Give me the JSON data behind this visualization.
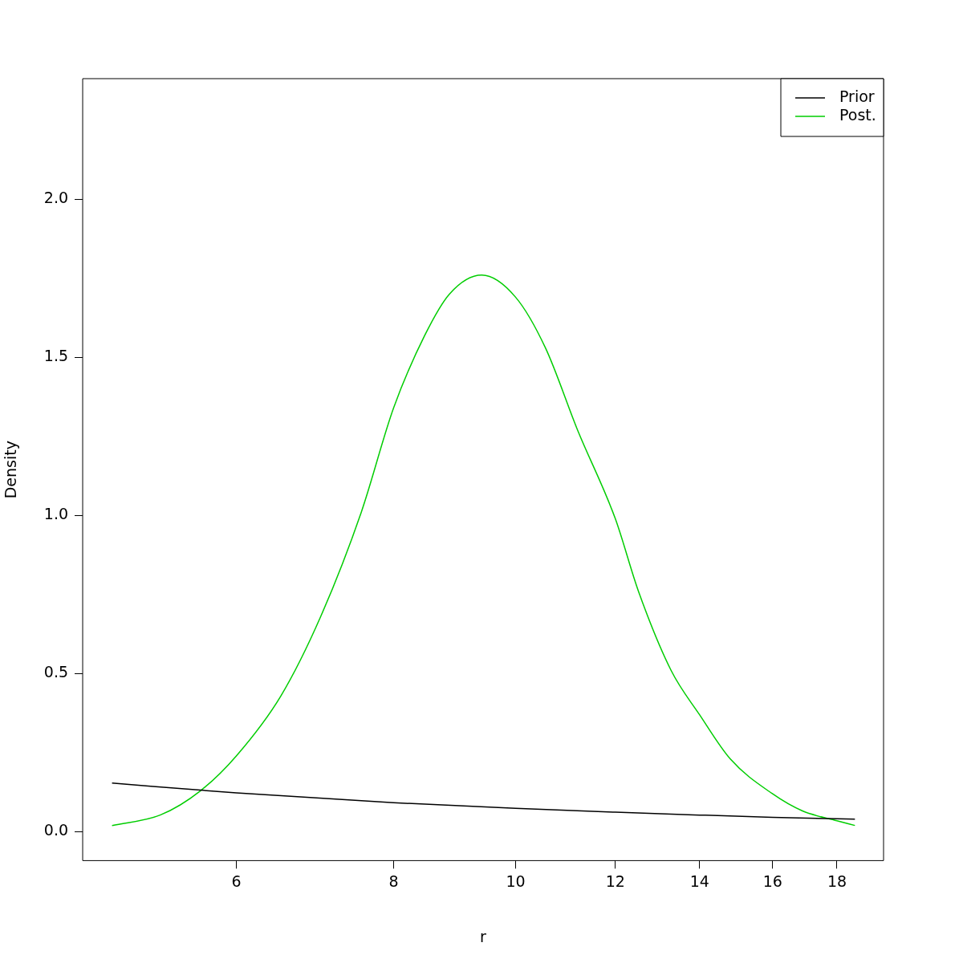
{
  "chart_data": {
    "type": "line",
    "xlabel": "r",
    "ylabel": "Density",
    "log": "x",
    "grid": false,
    "legend": "top right",
    "marker": "none",
    "line_style": "solid",
    "xlim": [
      4.53,
      19.6
    ],
    "xticks": [
      6,
      8,
      10,
      12,
      14,
      16,
      18
    ],
    "ylim": [
      -0.091,
      2.381
    ],
    "yticks": [
      {
        "value": 0,
        "label": "0.0"
      },
      {
        "value": 0.5,
        "label": "0.5"
      },
      {
        "value": 1,
        "label": "1.0"
      },
      {
        "value": 1.5,
        "label": "1.5"
      },
      {
        "value": 2,
        "label": "2.0"
      }
    ],
    "series": [
      {
        "name": "Prior",
        "color": "#000000",
        "x": [
          4.78,
          6,
          8,
          10,
          12,
          14,
          16,
          18,
          18.6
        ],
        "values": [
          0.154,
          0.123,
          0.092,
          0.074,
          0.062,
          0.053,
          0.046,
          0.041,
          0.04
        ]
      },
      {
        "name": "Post.",
        "color": "#00cd00",
        "x": [
          4.78,
          5.22,
          5.62,
          6,
          6.51,
          7.0,
          7.54,
          8,
          8.47,
          8.86,
          9.4,
          10,
          10.56,
          11.2,
          12,
          12.52,
          13.29,
          14,
          14.81,
          16,
          16.9,
          18,
          18.6
        ],
        "values": [
          0.02,
          0.053,
          0.13,
          0.24,
          0.43,
          0.68,
          1.01,
          1.34,
          1.57,
          1.7,
          1.76,
          1.69,
          1.53,
          1.27,
          0.99,
          0.76,
          0.51,
          0.37,
          0.23,
          0.12,
          0.066,
          0.035,
          0.02
        ]
      }
    ]
  }
}
